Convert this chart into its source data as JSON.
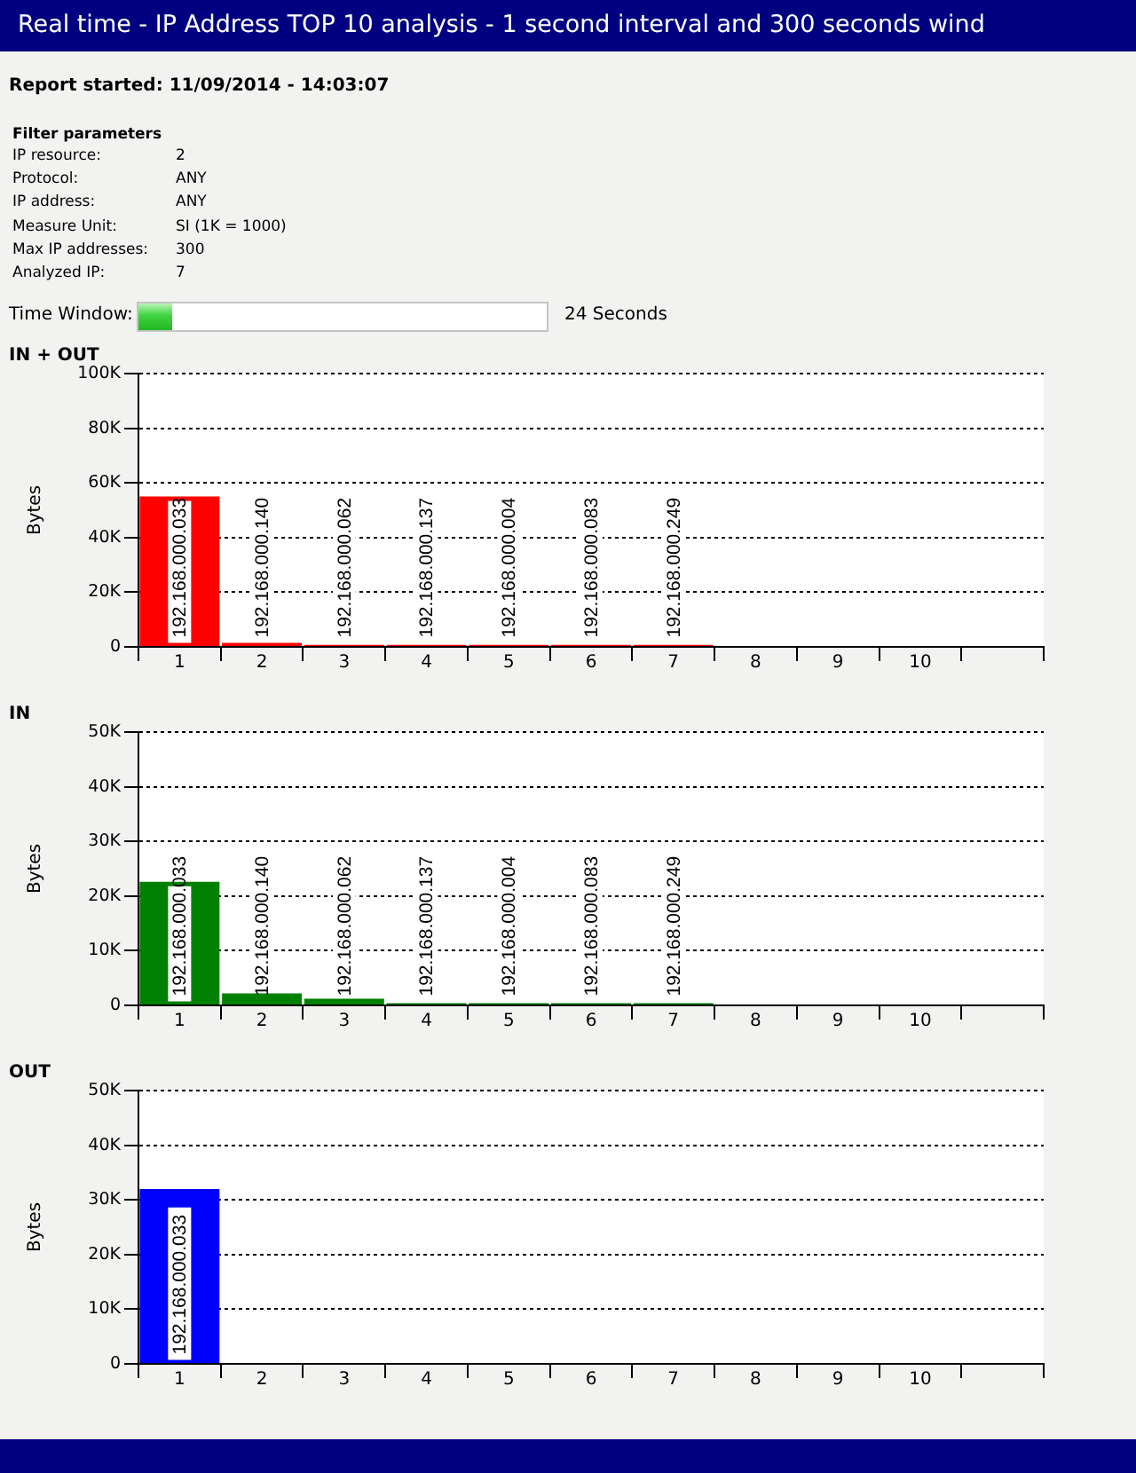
{
  "chart_data": [
    {
      "type": "other",
      "title": "Real time - IP Address TOP 10 analysis - 1 second interval and 300 seconds wind",
      "subtitle": "Report started: 11/09/2014 - 14:03:07",
      "annotations": [
        "Filter parameters",
        "IP resource:",
        "2",
        "Protocol:",
        "ANY",
        "IP address:",
        "ANY",
        "Measure Unit:",
        "SI (1K = 1000)",
        "Max IP addresses:",
        "300",
        "Analyzed IP:",
        "7",
        "Time Window:",
        "24 Seconds"
      ]
    },
    {
      "type": "bar",
      "title": "IN + OUT",
      "ylabel": "Bytes",
      "categories": [
        "1",
        "2",
        "3",
        "4",
        "5",
        "6",
        "7",
        "8",
        "9",
        "10",
        null
      ],
      "values": [
        55000,
        1500,
        700,
        700,
        700,
        700,
        700,
        null,
        null,
        null,
        null
      ],
      "color": "#ff0000",
      "annotations": [
        {
          "text": "192.168.000.033",
          "x": "1",
          "y": 3400
        },
        {
          "text": "192.168.000.140",
          "x": "2",
          "y": 3400
        },
        {
          "text": "192.168.000.062",
          "x": "3",
          "y": 3400
        },
        {
          "text": "192.168.000.137",
          "x": "4",
          "y": 3400
        },
        {
          "text": "192.168.000.004",
          "x": "5",
          "y": 3400
        },
        {
          "text": "192.168.000.083",
          "x": "6",
          "y": 3400
        },
        {
          "text": "192.168.000.249",
          "x": "7",
          "y": 3400
        }
      ],
      "ylim": [
        0,
        100000
      ],
      "yticks": [
        {
          "value": 0,
          "label": "0"
        },
        {
          "value": 20000,
          "label": "20K"
        },
        {
          "value": 40000,
          "label": "40K"
        },
        {
          "value": 60000,
          "label": "60K"
        },
        {
          "value": 80000,
          "label": "80K"
        },
        {
          "value": 100000,
          "label": "100K"
        }
      ],
      "grid": "y"
    },
    {
      "type": "bar",
      "title": "IN",
      "ylabel": "Bytes",
      "categories": [
        "1",
        "2",
        "3",
        "4",
        "5",
        "6",
        "7",
        "8",
        "9",
        "10",
        null
      ],
      "values": [
        22600,
        2200,
        1200,
        400,
        400,
        400,
        400,
        null,
        null,
        null,
        null
      ],
      "color": "#008000",
      "annotations": [
        {
          "text": "192.168.000.033",
          "x": "1",
          "y": 1700
        },
        {
          "text": "192.168.000.140",
          "x": "2",
          "y": 1700
        },
        {
          "text": "192.168.000.062",
          "x": "3",
          "y": 1700
        },
        {
          "text": "192.168.000.137",
          "x": "4",
          "y": 1700
        },
        {
          "text": "192.168.000.004",
          "x": "5",
          "y": 1700
        },
        {
          "text": "192.168.000.083",
          "x": "6",
          "y": 1700
        },
        {
          "text": "192.168.000.249",
          "x": "7",
          "y": 1700
        }
      ],
      "ylim": [
        0,
        50000
      ],
      "yticks": [
        {
          "value": 0,
          "label": "0"
        },
        {
          "value": 10000,
          "label": "10K"
        },
        {
          "value": 20000,
          "label": "20K"
        },
        {
          "value": 30000,
          "label": "30K"
        },
        {
          "value": 40000,
          "label": "40K"
        },
        {
          "value": 50000,
          "label": "50K"
        }
      ],
      "grid": "y"
    },
    {
      "type": "bar",
      "title": "OUT",
      "ylabel": "Bytes",
      "categories": [
        "1",
        "2",
        "3",
        "4",
        "5",
        "6",
        "7",
        "8",
        "9",
        "10",
        null
      ],
      "values": [
        32000,
        null,
        null,
        null,
        null,
        null,
        null,
        null,
        null,
        null,
        null
      ],
      "color": "#0000ff",
      "annotations": [
        {
          "text": "192.168.000.033",
          "x": "1",
          "y": 1700
        }
      ],
      "ylim": [
        0,
        50000
      ],
      "yticks": [
        {
          "value": 0,
          "label": "0"
        },
        {
          "value": 10000,
          "label": "10K"
        },
        {
          "value": 20000,
          "label": "20K"
        },
        {
          "value": 30000,
          "label": "30K"
        },
        {
          "value": 40000,
          "label": "40K"
        },
        {
          "value": 50000,
          "label": "50K"
        }
      ],
      "grid": "y"
    }
  ]
}
